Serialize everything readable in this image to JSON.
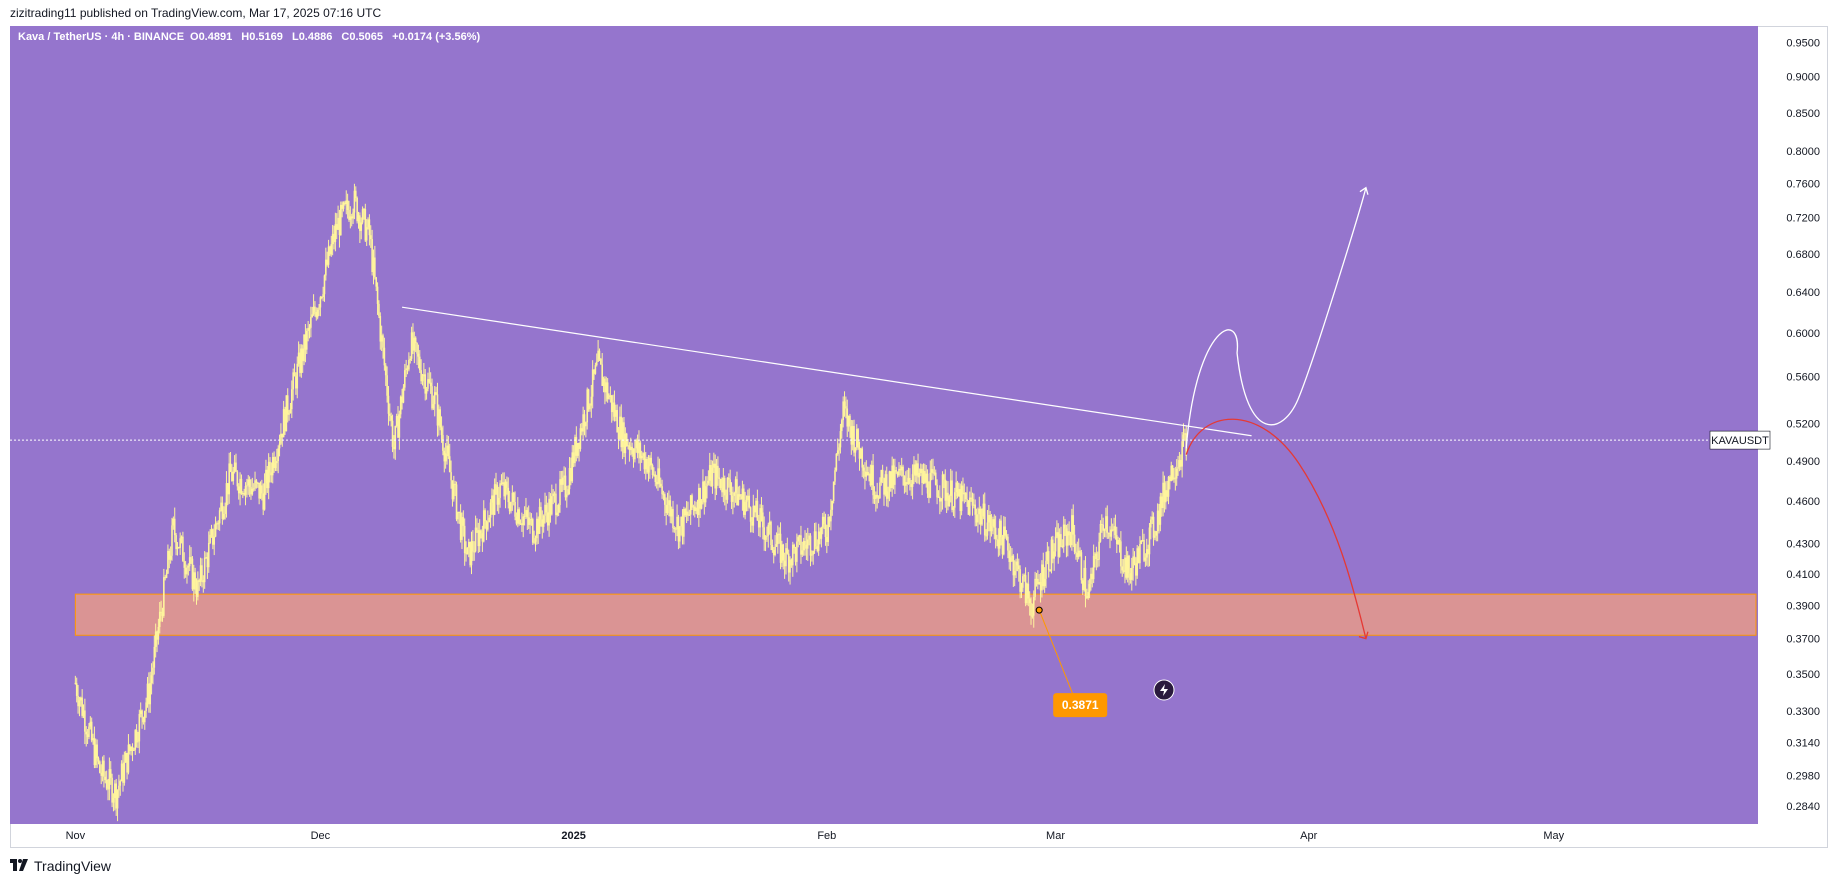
{
  "publisher_line": "zizitrading11 published on TradingView.com, Mar 17, 2025 07:16 UTC",
  "footer": {
    "brand": "TradingView",
    "logo_icon": "tradingview-logo-icon"
  },
  "colors": {
    "background": "#9575CD",
    "candle": "#FFF59D",
    "zone_fill": "#E69A8A",
    "zone_border": "#FF9800",
    "trendline": "#FFFFFF",
    "bull_path": "#FFFFFF",
    "bear_path": "#E53935",
    "callout": "#FF9800"
  },
  "chart_data": {
    "type": "candlestick",
    "symbol": "Kava / TetherUS · 4h · BINANCE",
    "ohlc_text": {
      "o_label": "O",
      "o": "0.4891",
      "h_label": "H",
      "h": "0.5169",
      "l_label": "L",
      "l": "0.4886",
      "c_label": "C",
      "c": "0.5065",
      "change": "+0.0174 (+3.56%)"
    },
    "y_axis": {
      "scale": "log",
      "ticks": [
        "0.9500",
        "0.9000",
        "0.8500",
        "0.8000",
        "0.7600",
        "0.7200",
        "0.6800",
        "0.6400",
        "0.6000",
        "0.5600",
        "0.5200",
        "0.4900",
        "0.4600",
        "0.4300",
        "0.4100",
        "0.3900",
        "0.3700",
        "0.3500",
        "0.3300",
        "0.3140",
        "0.2980",
        "0.2840"
      ]
    },
    "x_axis": {
      "ticks": [
        "Nov",
        "Dec",
        "2025",
        "Feb",
        "Mar",
        "Apr",
        "May"
      ]
    },
    "last_price_label": "KAVAUSDT",
    "last_price": 0.5065,
    "price_path": [
      [
        "2024-11-01",
        0.345
      ],
      [
        "2024-11-04",
        0.3
      ],
      [
        "2024-11-06",
        0.29
      ],
      [
        "2024-11-10",
        0.34
      ],
      [
        "2024-11-13",
        0.44
      ],
      [
        "2024-11-16",
        0.4
      ],
      [
        "2024-11-20",
        0.48
      ],
      [
        "2024-11-24",
        0.465
      ],
      [
        "2024-11-28",
        0.56
      ],
      [
        "2024-12-01",
        0.64
      ],
      [
        "2024-12-03",
        0.71
      ],
      [
        "2024-12-05",
        0.74
      ],
      [
        "2024-12-07",
        0.7
      ],
      [
        "2024-12-10",
        0.5
      ],
      [
        "2024-12-12",
        0.59
      ],
      [
        "2024-12-15",
        0.54
      ],
      [
        "2024-12-19",
        0.42
      ],
      [
        "2024-12-23",
        0.47
      ],
      [
        "2024-12-27",
        0.44
      ],
      [
        "2024-12-31",
        0.47
      ],
      [
        "2025-01-02",
        0.52
      ],
      [
        "2025-01-04",
        0.57
      ],
      [
        "2025-01-07",
        0.51
      ],
      [
        "2025-01-10",
        0.49
      ],
      [
        "2025-01-14",
        0.44
      ],
      [
        "2025-01-18",
        0.48
      ],
      [
        "2025-01-22",
        0.46
      ],
      [
        "2025-01-27",
        0.42
      ],
      [
        "2025-02-01",
        0.44
      ],
      [
        "2025-02-03",
        0.53
      ],
      [
        "2025-02-07",
        0.47
      ],
      [
        "2025-02-11",
        0.48
      ],
      [
        "2025-02-15",
        0.47
      ],
      [
        "2025-02-19",
        0.455
      ],
      [
        "2025-02-23",
        0.43
      ],
      [
        "2025-02-26",
        0.39
      ],
      [
        "2025-02-28",
        0.42
      ],
      [
        "2025-03-03",
        0.44
      ],
      [
        "2025-03-05",
        0.395
      ],
      [
        "2025-03-07",
        0.45
      ],
      [
        "2025-03-10",
        0.41
      ],
      [
        "2025-03-13",
        0.44
      ],
      [
        "2025-03-15",
        0.48
      ],
      [
        "2025-03-17",
        0.5065
      ]
    ],
    "support_zone": {
      "low": 0.372,
      "high": 0.397,
      "from": "2024-11-01",
      "to": "end"
    },
    "trendline": {
      "from": [
        "2024-12-11",
        0.625
      ],
      "to": [
        "2025-03-25",
        0.51
      ]
    },
    "callout": {
      "label": "0.3871",
      "anchor": [
        "2025-02-27",
        0.3871
      ]
    },
    "projection_bull": [
      [
        "2025-03-17",
        0.5
      ],
      [
        "2025-03-22",
        0.6
      ],
      [
        "2025-03-27",
        0.515
      ],
      [
        "2025-04-08",
        0.755
      ]
    ],
    "projection_bear": [
      [
        "2025-03-17",
        0.495
      ],
      [
        "2025-03-21",
        0.52
      ],
      [
        "2025-04-08",
        0.37
      ]
    ]
  }
}
